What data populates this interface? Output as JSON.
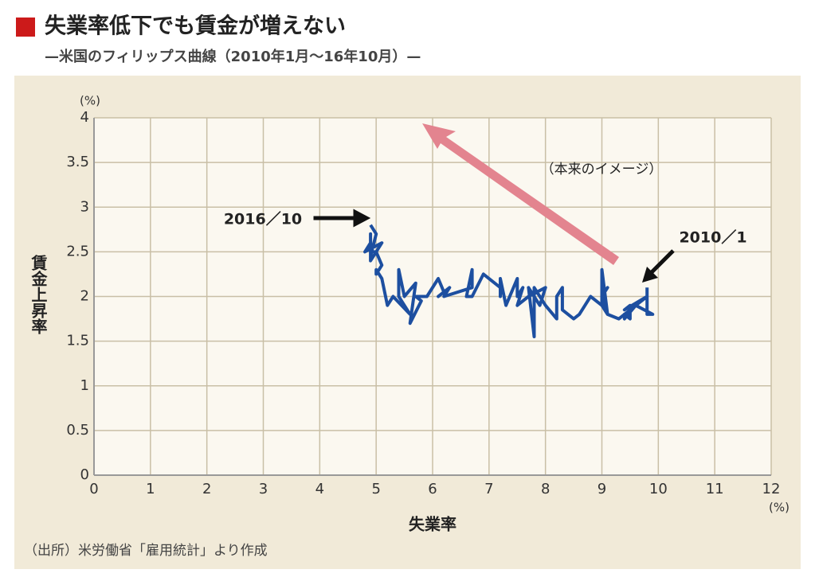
{
  "chart_data": {
    "type": "line",
    "title": "失業率低下でも賃金が増えない",
    "subtitle": "—米国のフィリップス曲線（2010年1月～16年10月）—",
    "x_label": "失業率",
    "y_label": "賃金上昇率",
    "x_unit": "(%)",
    "y_unit": "(%)",
    "source": "（出所）米労働省「雇用統計」より作成",
    "annotations": [
      "2016／10",
      "2010／1",
      "（本来のイメージ）"
    ],
    "color": "#1d4fa0",
    "x": [
      9.8,
      9.8,
      9.9,
      9.9,
      9.6,
      9.4,
      9.4,
      9.5,
      9.5,
      9.4,
      9.8,
      9.3,
      9.1,
      9.0,
      9.0,
      9.1,
      9.0,
      9.1,
      9.0,
      9.0,
      9.0,
      8.8,
      8.6,
      8.5,
      8.3,
      8.3,
      8.2,
      8.2,
      8.2,
      8.2,
      8.2,
      8.0,
      7.8,
      7.8,
      7.7,
      7.9,
      8.0,
      7.7,
      7.5,
      7.6,
      7.5,
      7.5,
      7.3,
      7.2,
      7.2,
      7.2,
      6.9,
      6.7,
      6.6,
      6.7,
      6.7,
      6.2,
      6.3,
      6.1,
      6.2,
      6.1,
      5.9,
      5.7,
      5.8,
      5.6,
      5.7,
      5.5,
      5.4,
      5.4,
      5.6,
      5.3,
      5.2,
      5.1,
      5.0,
      5.0,
      5.1,
      5.0,
      4.9,
      4.9,
      5.0,
      5.1,
      4.8,
      4.9,
      4.9,
      4.9,
      5.0,
      4.9
    ],
    "values": [
      2.1,
      1.8,
      1.8,
      1.8,
      1.9,
      1.75,
      1.8,
      1.75,
      1.9,
      1.85,
      2.0,
      1.75,
      1.8,
      2.3,
      1.9,
      1.8,
      2.0,
      2.1,
      2.0,
      1.95,
      1.9,
      2.0,
      1.8,
      1.75,
      1.85,
      2.1,
      2.0,
      1.8,
      1.85,
      2.0,
      1.75,
      1.9,
      2.1,
      1.55,
      2.1,
      1.9,
      2.1,
      2.0,
      1.9,
      2.1,
      2.0,
      2.2,
      1.9,
      2.2,
      2.0,
      2.1,
      2.25,
      2.0,
      2.0,
      2.3,
      2.1,
      2.0,
      2.1,
      2.0,
      2.05,
      2.2,
      2.0,
      2.0,
      1.95,
      1.7,
      2.15,
      2.0,
      2.3,
      2.0,
      1.8,
      2.0,
      1.9,
      2.2,
      2.3,
      2.25,
      2.35,
      2.5,
      2.5,
      2.4,
      2.5,
      2.6,
      2.5,
      2.6,
      2.7,
      2.45,
      2.7,
      2.8
    ],
    "xlim": [
      0,
      12
    ],
    "ylim": [
      0,
      4
    ],
    "xticks": [
      0,
      1,
      2,
      3,
      4,
      5,
      6,
      7,
      8,
      9,
      10,
      11,
      12
    ],
    "yticks": [
      0,
      0.5,
      1,
      1.5,
      2,
      2.5,
      3,
      3.5,
      4
    ],
    "grid": true
  }
}
